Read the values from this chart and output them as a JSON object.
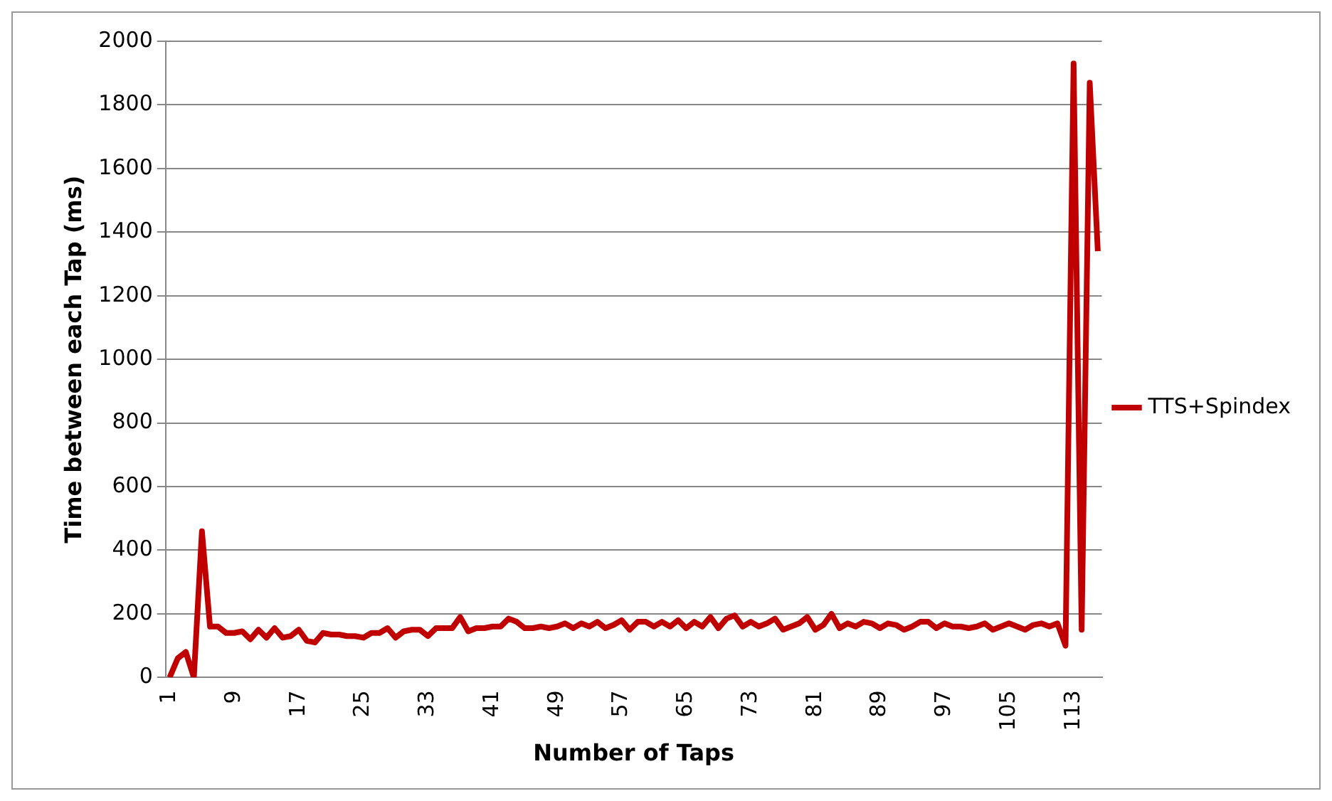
{
  "chart_data": {
    "type": "line",
    "xlabel": "Number of Taps",
    "ylabel": "Time between each Tap (ms)",
    "categories": [
      "1",
      null,
      null,
      null,
      null,
      null,
      null,
      null,
      "9",
      null,
      null,
      null,
      null,
      null,
      null,
      null,
      "17",
      null,
      null,
      null,
      null,
      null,
      null,
      null,
      "25",
      null,
      null,
      null,
      null,
      null,
      null,
      null,
      "33",
      null,
      null,
      null,
      null,
      null,
      null,
      null,
      "41",
      null,
      null,
      null,
      null,
      null,
      null,
      null,
      "49",
      null,
      null,
      null,
      null,
      null,
      null,
      null,
      "57",
      null,
      null,
      null,
      null,
      null,
      null,
      null,
      "65",
      null,
      null,
      null,
      null,
      null,
      null,
      null,
      "73",
      null,
      null,
      null,
      null,
      null,
      null,
      null,
      "81",
      null,
      null,
      null,
      null,
      null,
      null,
      null,
      "89",
      null,
      null,
      null,
      null,
      null,
      null,
      null,
      "97",
      null,
      null,
      null,
      null,
      null,
      null,
      null,
      "105",
      null,
      null,
      null,
      null,
      null,
      null,
      null,
      "113",
      null,
      null,
      null
    ],
    "series": [
      {
        "name": "TTS+Spindex",
        "color": "#c00000",
        "values": [
          0,
          60,
          80,
          0,
          460,
          160,
          160,
          140,
          140,
          145,
          120,
          150,
          125,
          155,
          125,
          130,
          150,
          115,
          110,
          140,
          135,
          135,
          130,
          130,
          125,
          140,
          140,
          155,
          125,
          145,
          150,
          150,
          130,
          155,
          155,
          155,
          190,
          145,
          155,
          155,
          160,
          160,
          185,
          175,
          155,
          155,
          160,
          155,
          160,
          170,
          155,
          170,
          160,
          175,
          155,
          165,
          180,
          150,
          175,
          175,
          160,
          175,
          160,
          180,
          155,
          175,
          160,
          190,
          155,
          185,
          195,
          160,
          175,
          160,
          170,
          185,
          150,
          160,
          170,
          190,
          150,
          165,
          200,
          155,
          170,
          160,
          175,
          170,
          155,
          170,
          165,
          150,
          160,
          175,
          175,
          155,
          170,
          160,
          160,
          155,
          160,
          170,
          150,
          160,
          170,
          160,
          150,
          165,
          170,
          160,
          170,
          100,
          1930,
          150,
          1870,
          1340
        ]
      }
    ],
    "ylim": [
      0,
      2000
    ],
    "yticks": [
      0,
      200,
      400,
      600,
      800,
      1000,
      1200,
      1400,
      1600,
      1800,
      2000
    ],
    "grid": "y",
    "legend": "right",
    "marker": "none",
    "line_style": "solid"
  }
}
